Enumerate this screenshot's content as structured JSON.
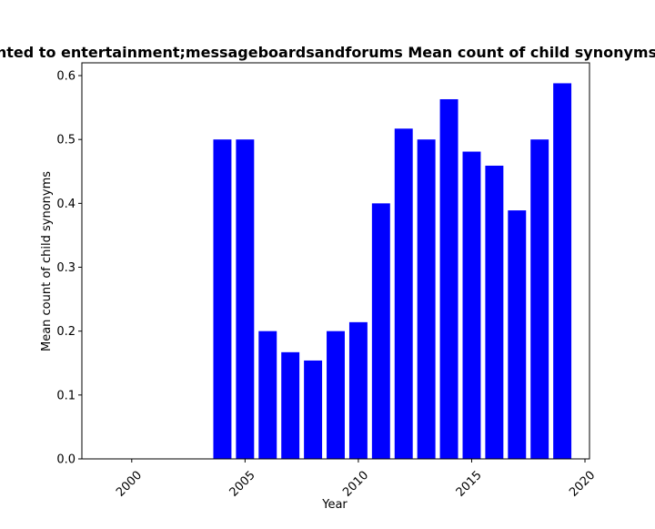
{
  "chart_data": {
    "type": "bar",
    "title": "Mean count of child synonyms for terms related to entertainment;messageboardsandforums Mean count of child synonyms",
    "visible_title": "nted to entertainment;messageboardsandforums Mean count of child synonyms",
    "xlabel": "Year",
    "ylabel": "Mean count of child synonyms",
    "xlim": [
      1997.8,
      2020.2
    ],
    "ylim": [
      0,
      0.62
    ],
    "x_ticks": [
      2000,
      2005,
      2010,
      2015,
      2020
    ],
    "y_ticks": [
      0.0,
      0.1,
      0.2,
      0.3,
      0.4,
      0.5,
      0.6
    ],
    "y_tick_labels": [
      "0.0",
      "0.1",
      "0.2",
      "0.3",
      "0.4",
      "0.5",
      "0.6"
    ],
    "bar_color": "#0000ff",
    "x": [
      2004,
      2005,
      2006,
      2007,
      2008,
      2009,
      2010,
      2011,
      2012,
      2013,
      2014,
      2015,
      2016,
      2017,
      2018,
      2019
    ],
    "values": [
      0.5,
      0.5,
      0.2,
      0.167,
      0.154,
      0.2,
      0.214,
      0.4,
      0.517,
      0.5,
      0.563,
      0.481,
      0.459,
      0.389,
      0.5,
      0.588
    ],
    "grid": false,
    "legend": "none"
  }
}
